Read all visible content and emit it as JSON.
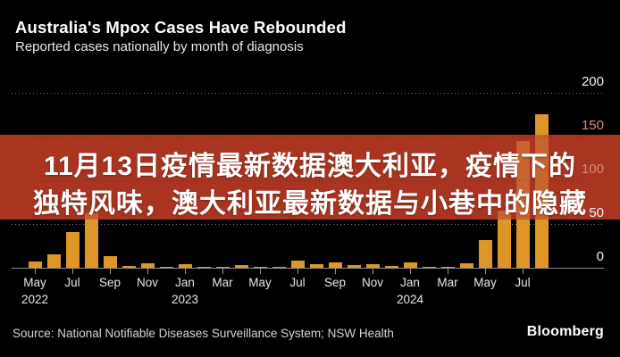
{
  "header": {
    "title": "Australia's Mpox Cases Have Rebounded",
    "subtitle": "Reported cases nationally by month of diagnosis"
  },
  "overlay": {
    "line1": "11月13日疫情最新数据澳大利亚，疫情下的",
    "line2": "独特风味，澳大利亚最新数据与小巷中的隐藏"
  },
  "footer": {
    "source": "Source: National Notifiable Diseases Surveillance System; NSW Health",
    "brand": "Bloomberg"
  },
  "colors": {
    "background": "#000000",
    "bar": "#DF9528",
    "bar_through_overlay": "#C8642E",
    "overlay_bg": "#A93420",
    "overlay_text": "#FFFFFF",
    "gridline": "#787878",
    "axis_line": "#909090",
    "axis_label": "#F2F2F2",
    "axis_label_dimmed": "#D68F76",
    "tick_label": "#E8E8E8"
  },
  "chart_data": {
    "type": "bar",
    "title": "Australia's Mpox Cases Have Rebounded",
    "subtitle": "Reported cases nationally by month of diagnosis",
    "unit": "reported mpox cases per month of diagnosis",
    "x": [
      "May 2022",
      "Jun 2022",
      "Jul 2022",
      "Aug 2022",
      "Sep 2022",
      "Oct 2022",
      "Nov 2022",
      "Dec 2022",
      "Jan 2023",
      "Feb 2023",
      "Mar 2023",
      "Apr 2023",
      "May 2023",
      "Jun 2023",
      "Jul 2023",
      "Aug 2023",
      "Sep 2023",
      "Oct 2023",
      "Nov 2023",
      "Dec 2023",
      "Jan 2024",
      "Feb 2024",
      "Mar 2024",
      "Apr 2024",
      "May 2024",
      "Jun 2024",
      "Jul 2024",
      "Aug 2024"
    ],
    "values": [
      7,
      15,
      41,
      62,
      13,
      2,
      5,
      1,
      4,
      1,
      1,
      3,
      1,
      1,
      8,
      4,
      6,
      3,
      4,
      2,
      6,
      1,
      1,
      5,
      32,
      65,
      145,
      175
    ],
    "ylim": [
      0,
      200
    ],
    "yticks": [
      0,
      50,
      100,
      150,
      200
    ],
    "xticks": [
      {
        "month": "May",
        "year": "2022",
        "index": 0
      },
      {
        "month": "Jul",
        "index": 2
      },
      {
        "month": "Sep",
        "index": 4
      },
      {
        "month": "Nov",
        "index": 6
      },
      {
        "month": "Jan",
        "year": "2023",
        "index": 8
      },
      {
        "month": "Mar",
        "index": 10
      },
      {
        "month": "May",
        "index": 12
      },
      {
        "month": "Jul",
        "index": 14
      },
      {
        "month": "Sep",
        "index": 16
      },
      {
        "month": "Nov",
        "index": 18
      },
      {
        "month": "Jan",
        "year": "2024",
        "index": 20
      },
      {
        "month": "Mar",
        "index": 22
      },
      {
        "month": "May",
        "index": 24
      },
      {
        "month": "Jul",
        "index": 26
      }
    ],
    "grid": "dotted horizontal gridlines, solid zero axis",
    "legend": "none"
  }
}
